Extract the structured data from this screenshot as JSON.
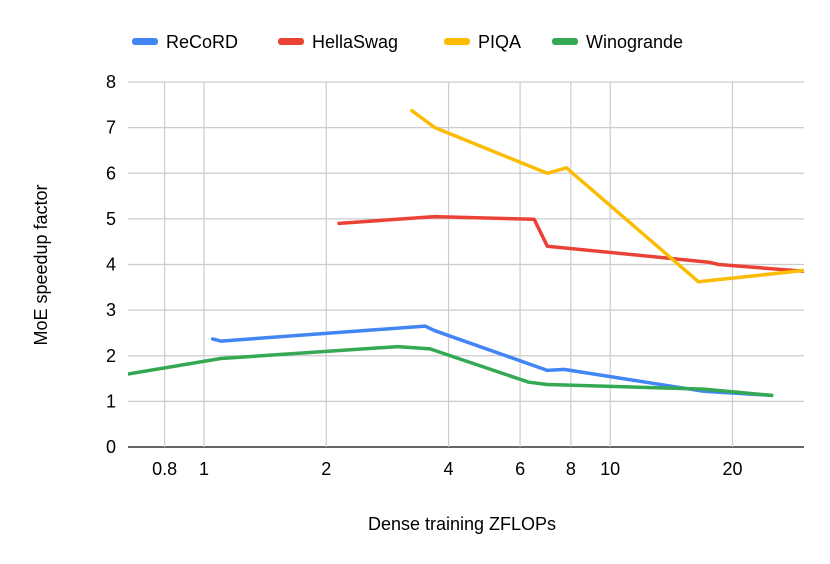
{
  "chart_data": {
    "type": "line",
    "title": "",
    "xlabel": "Dense training ZFLOPs",
    "ylabel": "MoE speedup factor",
    "x_scale": "log",
    "xlim": [
      0.65,
      30
    ],
    "ylim": [
      0,
      8
    ],
    "grid": true,
    "legend_position": "top",
    "x_ticks": [
      0.8,
      1,
      2,
      4,
      6,
      8,
      10,
      20
    ],
    "x_tick_labels": [
      "0.8",
      "1",
      "2",
      "4",
      "6",
      "8",
      "10",
      "20"
    ],
    "y_ticks": [
      0,
      1,
      2,
      3,
      4,
      5,
      6,
      7,
      8
    ],
    "y_tick_labels": [
      "0",
      "1",
      "2",
      "3",
      "4",
      "5",
      "6",
      "7",
      "8"
    ],
    "series": [
      {
        "name": "ReCoRD",
        "color": "#4285F4",
        "x": [
          1.05,
          1.1,
          3.5,
          3.7,
          7.0,
          7.7,
          17.0,
          25.0
        ],
        "y": [
          2.37,
          2.32,
          2.65,
          2.55,
          1.68,
          1.7,
          1.22,
          1.13
        ]
      },
      {
        "name": "HellaSwag",
        "color": "#EA4335",
        "x": [
          2.15,
          3.7,
          6.5,
          7.0,
          17.5,
          18.5,
          30.0
        ],
        "y": [
          4.9,
          5.05,
          4.99,
          4.4,
          4.05,
          4.0,
          3.85
        ]
      },
      {
        "name": "PIQA",
        "color": "#FBBC04",
        "x": [
          3.25,
          3.7,
          7.0,
          7.8,
          16.5,
          30.0
        ],
        "y": [
          7.37,
          7.0,
          6.0,
          6.12,
          3.62,
          3.87
        ]
      },
      {
        "name": "Winogrande",
        "color": "#34A853",
        "x": [
          0.65,
          1.1,
          3.0,
          3.6,
          6.3,
          7.0,
          17.0,
          25.0
        ],
        "y": [
          1.6,
          1.94,
          2.2,
          2.15,
          1.42,
          1.37,
          1.27,
          1.13
        ]
      }
    ]
  }
}
